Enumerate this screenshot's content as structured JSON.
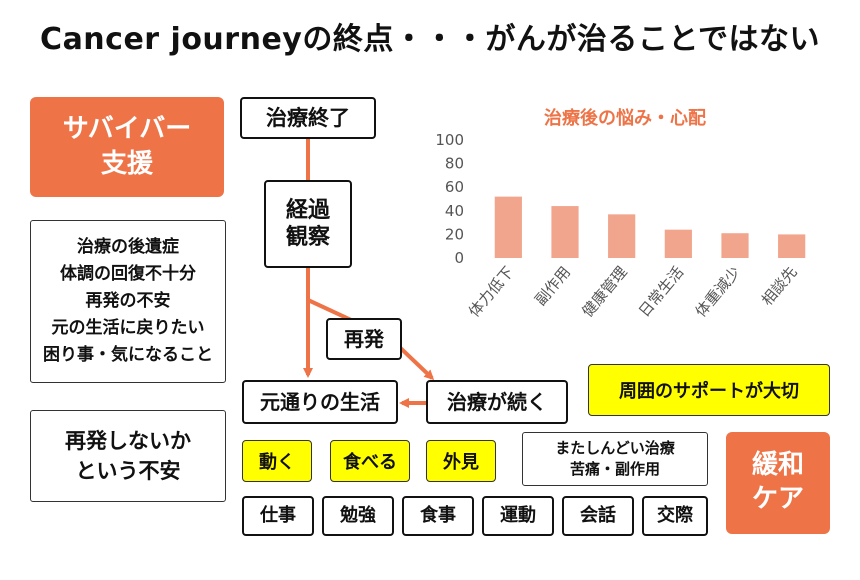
{
  "title": "Cancer journeyの終点・・・がんが治ることではない",
  "survivor_support": [
    "サバイバー",
    "支援"
  ],
  "flow": {
    "treatment_end": "治療終了",
    "observation": [
      "経過",
      "観察"
    ],
    "recurrence": "再発",
    "back_to_life": "元通りの生活",
    "treatment_continues": "治療が続く"
  },
  "worries_list": [
    "治療の後遺症",
    "体調の回復不十分",
    "再発の不安",
    "元の生活に戻りたい",
    "困り事・気になること"
  ],
  "recurrence_anxiety": [
    "再発しないか",
    "という不安"
  ],
  "support_banner": "周囲のサポートが大切",
  "hard_treatment": [
    "またしんどい治療",
    "苦痛・副作用"
  ],
  "palliative_care": [
    "緩和",
    "ケア"
  ],
  "yellow_items": [
    "動く",
    "食べる",
    "外見"
  ],
  "life_items": [
    "仕事",
    "勉強",
    "食事",
    "運動",
    "会話",
    "交際"
  ],
  "colors": {
    "accent_orange": "#ee7448",
    "bar_color": "#f0a58c",
    "highlight_yellow": "#ffff00"
  },
  "chart_data": {
    "type": "bar",
    "title": "治療後の悩み・心配",
    "categories": [
      "体力低下",
      "副作用",
      "健康管理",
      "日常生活",
      "体重減少",
      "相談先"
    ],
    "values": [
      52,
      44,
      37,
      24,
      21,
      20
    ],
    "ylim": [
      0,
      100
    ],
    "yticks": [
      0,
      20,
      40,
      60,
      80,
      100
    ],
    "grid": false
  }
}
